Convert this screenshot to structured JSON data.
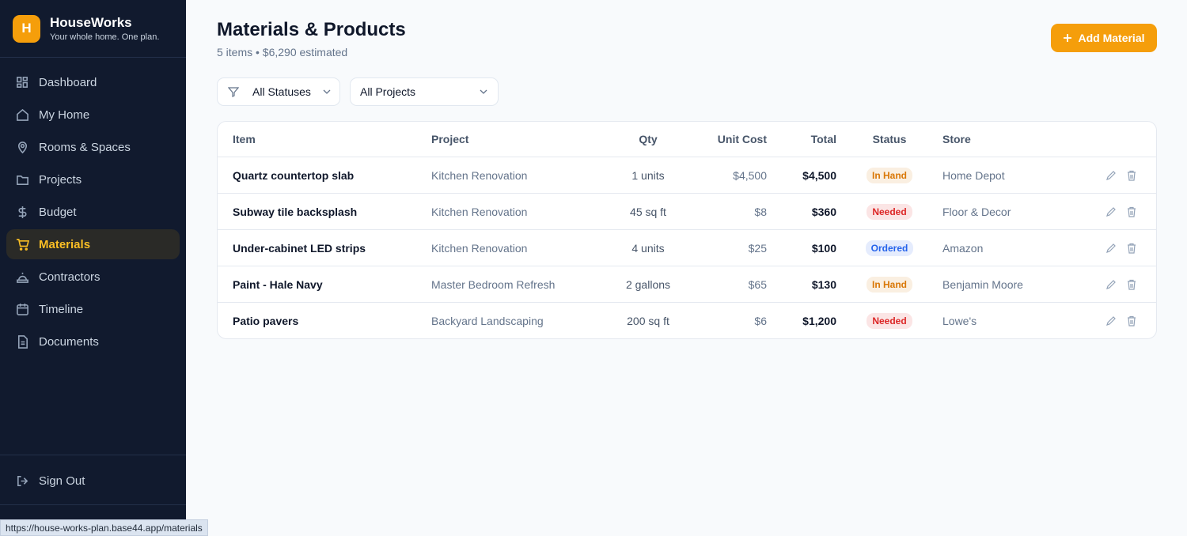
{
  "sidebar": {
    "logo": "H",
    "name": "HouseWorks",
    "tagline": "Your whole home. One plan.",
    "nav": [
      {
        "label": "Dashboard",
        "active": false
      },
      {
        "label": "My Home",
        "active": false
      },
      {
        "label": "Rooms & Spaces",
        "active": false
      },
      {
        "label": "Projects",
        "active": false
      },
      {
        "label": "Budget",
        "active": false
      },
      {
        "label": "Materials",
        "active": true
      },
      {
        "label": "Contractors",
        "active": false
      },
      {
        "label": "Timeline",
        "active": false
      },
      {
        "label": "Documents",
        "active": false
      }
    ],
    "sign_out": "Sign Out"
  },
  "header": {
    "title": "Materials & Products",
    "subtitle": "5 items • $6,290 estimated",
    "add_button": "Add Material"
  },
  "filters": [
    "All Statuses",
    "All Projects"
  ],
  "table": {
    "columns": [
      "Item",
      "Project",
      "Qty",
      "Unit Cost",
      "Total",
      "Status",
      "Store"
    ],
    "rows": [
      {
        "item": "Quartz countertop slab",
        "project": "Kitchen Renovation",
        "qty": "1 units",
        "unit_cost": "$4,500",
        "total": "$4,500",
        "status": "In Hand",
        "status_color": "#d97706",
        "store": "Home Depot"
      },
      {
        "item": "Subway tile backsplash",
        "project": "Kitchen Renovation",
        "qty": "45 sq ft",
        "unit_cost": "$8",
        "total": "$360",
        "status": "Needed",
        "status_color": "#dc2626",
        "store": "Floor & Decor"
      },
      {
        "item": "Under-cabinet LED strips",
        "project": "Kitchen Renovation",
        "qty": "4 units",
        "unit_cost": "$25",
        "total": "$100",
        "status": "Ordered",
        "status_color": "#2563eb",
        "store": "Amazon"
      },
      {
        "item": "Paint - Hale Navy",
        "project": "Master Bedroom Refresh",
        "qty": "2 gallons",
        "unit_cost": "$65",
        "total": "$130",
        "status": "In Hand",
        "status_color": "#d97706",
        "store": "Benjamin Moore"
      },
      {
        "item": "Patio pavers",
        "project": "Backyard Landscaping",
        "qty": "200 sq ft",
        "unit_cost": "$6",
        "total": "$1,200",
        "status": "Needed",
        "status_color": "#dc2626",
        "store": "Lowe's"
      }
    ]
  },
  "status_bar": "https://house-works-plan.base44.app/materials"
}
